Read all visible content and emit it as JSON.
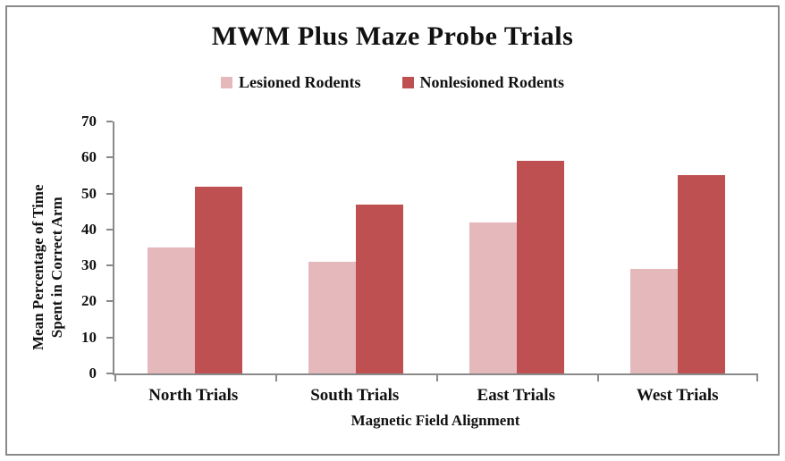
{
  "chart_data": {
    "type": "bar",
    "title": "MWM Plus Maze Probe Trials",
    "xlabel": "Magnetic Field Alignment",
    "ylabel": "Mean Percentage of Time Spent in Correct Arm",
    "ylabel_lines": [
      "Mean Percentage of Time",
      "Spent in Correct Arm"
    ],
    "categories": [
      "North Trials",
      "South Trials",
      "East Trials",
      "West Trials"
    ],
    "series": [
      {
        "name": "Lesioned Rodents",
        "color": "#E5B8BB",
        "values": [
          35,
          31,
          42,
          29
        ]
      },
      {
        "name": "Nonlesioned Rodents",
        "color": "#BF5052",
        "values": [
          52,
          47,
          59,
          55
        ]
      }
    ],
    "ylim": [
      0,
      70
    ],
    "yticks": [
      0,
      10,
      20,
      30,
      40,
      50,
      60,
      70
    ],
    "grid": false,
    "legend_position": "top",
    "axis_color": "#8a8a8a",
    "frame_color": "#8a8a8a"
  }
}
